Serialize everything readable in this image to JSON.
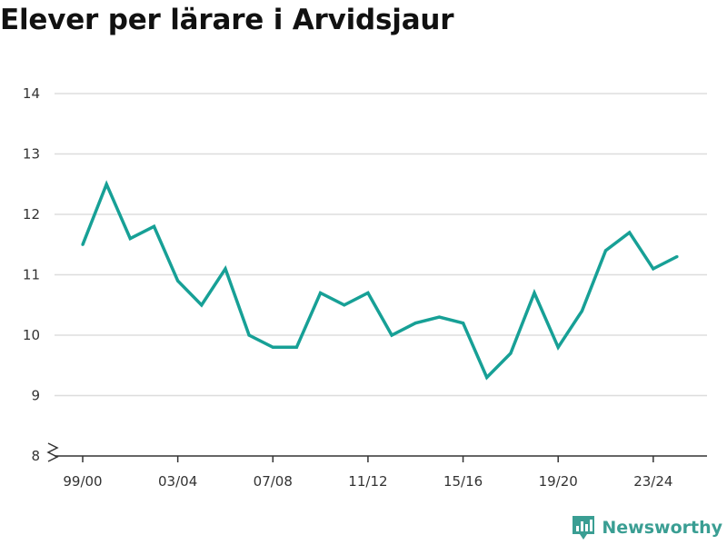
{
  "title": "Elever per lärare i Arvidsjaur",
  "brand": {
    "name": "Newsworthy",
    "logo_icon": "newsworthy-logo-icon",
    "color": "#3a9e93"
  },
  "colors": {
    "line": "#17a096",
    "grid": "#dddddd",
    "axis": "#333333"
  },
  "chart_data": {
    "type": "line",
    "title": "Elever per lärare i Arvidsjaur",
    "xlabel": "",
    "ylabel": "",
    "x": [
      "99/00",
      "00/01",
      "01/02",
      "02/03",
      "03/04",
      "04/05",
      "05/06",
      "06/07",
      "07/08",
      "08/09",
      "09/10",
      "10/11",
      "11/12",
      "12/13",
      "13/14",
      "14/15",
      "15/16",
      "16/17",
      "17/18",
      "18/19",
      "19/20",
      "20/21",
      "21/22",
      "22/23",
      "23/24",
      "24/25"
    ],
    "x_tick_labels": [
      "99/00",
      "03/04",
      "07/08",
      "11/12",
      "15/16",
      "19/20",
      "23/24"
    ],
    "series": [
      {
        "values": [
          11.5,
          12.5,
          11.6,
          11.8,
          10.9,
          10.5,
          11.1,
          10.0,
          9.8,
          9.8,
          10.7,
          10.5,
          10.7,
          10.0,
          10.2,
          10.3,
          10.2,
          9.3,
          9.7,
          10.7,
          9.8,
          10.4,
          11.4,
          11.7,
          11.1,
          11.3
        ]
      }
    ],
    "ylim": [
      8,
      14
    ],
    "y_ticks": [
      8,
      9,
      10,
      11,
      12,
      13,
      14
    ],
    "y_axis_break": true,
    "grid": true
  }
}
